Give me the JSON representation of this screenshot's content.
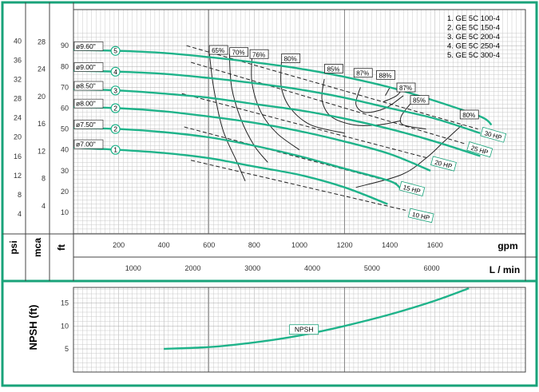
{
  "chart_data": [
    {
      "type": "line",
      "panel": "head-capacity",
      "legend": [
        "1. GE 5C 100-4",
        "2. GE 5C 150-4",
        "3. GE 5C 200-4",
        "4. GE 5C 250-4",
        "5. GE 5C 300-4"
      ],
      "legend_position": "top-right",
      "unit_labels": {
        "psi": "psi",
        "mca": "mca",
        "ft": "ft",
        "gpm": "gpm",
        "lmin": "L / min"
      },
      "axes": {
        "gpm": {
          "range": [
            0,
            1970
          ],
          "ticks": [
            200,
            400,
            600,
            800,
            1000,
            1200,
            1400,
            1600
          ]
        },
        "lmin": {
          "ticks": [
            1000,
            2000,
            3000,
            4000,
            5000,
            6000
          ]
        },
        "ft": {
          "range": [
            0,
            97
          ],
          "ticks": [
            10,
            20,
            30,
            40,
            50,
            60,
            70,
            80,
            90
          ]
        },
        "mca": {
          "ticks": [
            4,
            8,
            12,
            16,
            20,
            24,
            28
          ]
        },
        "psi": {
          "ticks": [
            4,
            8,
            12,
            16,
            20,
            24,
            28,
            32,
            36,
            40
          ]
        }
      },
      "grid": true,
      "series": [
        {
          "id": "1",
          "diameter": "ø7.00\"",
          "x": [
            0,
            200,
            400,
            600,
            800,
            1000,
            1200,
            1390
          ],
          "y": [
            41,
            40,
            38.5,
            36,
            32,
            28,
            22,
            14
          ]
        },
        {
          "id": "2",
          "diameter": "ø7.50\"",
          "x": [
            0,
            200,
            400,
            600,
            800,
            1000,
            1200,
            1400,
            1450
          ],
          "y": [
            50.5,
            50,
            48.5,
            46,
            42,
            37,
            31,
            25,
            21
          ]
        },
        {
          "id": "2",
          "diameter": "ø8.00\"",
          "x": [
            0,
            200,
            400,
            600,
            800,
            1000,
            1200,
            1400,
            1580
          ],
          "y": [
            60.5,
            60,
            58.5,
            56,
            53,
            49,
            44,
            38,
            30
          ]
        },
        {
          "id": "3",
          "diameter": "ø8.50\"",
          "x": [
            0,
            200,
            400,
            600,
            800,
            1000,
            1200,
            1400,
            1600,
            1800
          ],
          "y": [
            69,
            68.5,
            67,
            65,
            62,
            59,
            55,
            50,
            44,
            37
          ]
        },
        {
          "id": "4",
          "diameter": "ø9.00\"",
          "x": [
            0,
            200,
            400,
            600,
            800,
            1000,
            1200,
            1400,
            1600,
            1800
          ],
          "y": [
            78,
            77.5,
            76.5,
            74.5,
            72,
            69,
            65,
            60,
            55,
            48
          ]
        },
        {
          "id": "5",
          "diameter": "ø9.60\"",
          "x": [
            0,
            200,
            400,
            600,
            800,
            1000,
            1200,
            1400,
            1600,
            1800,
            1850
          ],
          "y": [
            88,
            87.5,
            86.5,
            84.5,
            82,
            79,
            75,
            70,
            63.5,
            56,
            52
          ]
        }
      ],
      "efficiency_labels": [
        "65%",
        "70%",
        "76%",
        "80%",
        "85%",
        "87%",
        "88%",
        "87%",
        "85%",
        "80%"
      ],
      "power_lines": [
        "10 HP",
        "15 HP",
        "20 HP",
        "25 HP",
        "30 HP"
      ],
      "colors": {
        "frame": "#19a37a",
        "curve": "#1fb38a",
        "grid": "#c8c8c8",
        "axis_text": "#333333"
      }
    },
    {
      "type": "line",
      "panel": "npsh",
      "title": "NPSH (ft)",
      "series": [
        {
          "name": "NPSH",
          "x": [
            400,
            600,
            800,
            1000,
            1200,
            1400,
            1600,
            1750
          ],
          "y": [
            5,
            5.4,
            6.4,
            7.9,
            10,
            12.5,
            15.5,
            18.2
          ]
        }
      ],
      "y_ticks": [
        5,
        10,
        15
      ],
      "grid": true
    }
  ]
}
